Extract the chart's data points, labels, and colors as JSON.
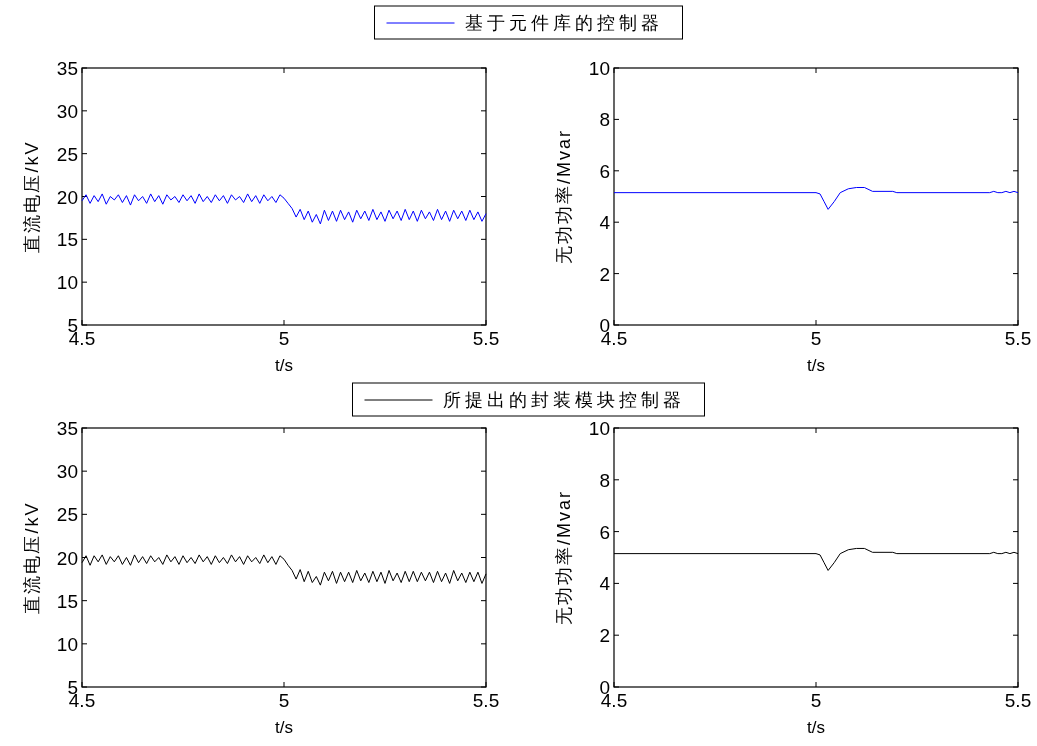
{
  "chart_data": [
    {
      "type": "line",
      "xlabel": "t/s",
      "ylabel": "直流电压/kV",
      "xlim": [
        4.5,
        5.5
      ],
      "xticks": [
        4.5,
        5,
        5.5
      ],
      "ylim": [
        5,
        35
      ],
      "yticks": [
        5,
        10,
        15,
        20,
        25,
        30,
        35
      ],
      "legend": "top",
      "x": [
        4.5,
        4.51,
        4.52,
        4.53,
        4.54,
        4.55,
        4.56,
        4.57,
        4.58,
        4.59,
        4.6,
        4.61,
        4.62,
        4.63,
        4.64,
        4.65,
        4.66,
        4.67,
        4.68,
        4.69,
        4.7,
        4.71,
        4.72,
        4.73,
        4.74,
        4.75,
        4.76,
        4.77,
        4.78,
        4.79,
        4.8,
        4.81,
        4.82,
        4.83,
        4.84,
        4.85,
        4.86,
        4.87,
        4.88,
        4.89,
        4.9,
        4.91,
        4.92,
        4.93,
        4.94,
        4.95,
        4.96,
        4.97,
        4.98,
        4.99,
        5.0,
        5.01,
        5.02,
        5.03,
        5.04,
        5.05,
        5.06,
        5.07,
        5.08,
        5.09,
        5.1,
        5.11,
        5.12,
        5.13,
        5.14,
        5.15,
        5.16,
        5.17,
        5.18,
        5.19,
        5.2,
        5.21,
        5.22,
        5.23,
        5.24,
        5.25,
        5.26,
        5.27,
        5.28,
        5.29,
        5.3,
        5.31,
        5.32,
        5.33,
        5.34,
        5.35,
        5.36,
        5.37,
        5.38,
        5.39,
        5.4,
        5.41,
        5.42,
        5.43,
        5.44,
        5.45,
        5.46,
        5.47,
        5.48,
        5.49,
        5.5
      ],
      "series": [
        {
          "name": "基于元件库的控制器",
          "color": "#0000ff",
          "values": [
            19.5,
            20.2,
            19.2,
            20.1,
            19.4,
            20.3,
            19.1,
            20.0,
            19.6,
            20.2,
            19.3,
            20.1,
            19.0,
            20.2,
            19.5,
            20.0,
            19.2,
            20.3,
            19.4,
            20.1,
            19.1,
            20.2,
            19.6,
            20.0,
            19.3,
            20.2,
            19.5,
            20.1,
            19.2,
            20.3,
            19.4,
            20.0,
            19.3,
            20.2,
            19.5,
            20.1,
            19.2,
            20.2,
            19.6,
            20.0,
            19.3,
            20.3,
            19.4,
            20.1,
            19.2,
            20.2,
            19.5,
            20.0,
            19.3,
            20.2,
            19.8,
            19.2,
            18.6,
            17.6,
            18.5,
            17.3,
            18.3,
            17.0,
            17.9,
            16.8,
            18.4,
            17.2,
            18.3,
            17.1,
            18.4,
            17.3,
            18.2,
            17.0,
            18.4,
            17.4,
            18.3,
            17.2,
            18.5,
            17.3,
            18.2,
            17.1,
            18.4,
            17.4,
            18.3,
            17.2,
            18.5,
            17.3,
            18.3,
            17.1,
            18.4,
            17.4,
            18.2,
            17.2,
            18.5,
            17.3,
            18.3,
            17.1,
            18.4,
            17.4,
            18.3,
            17.2,
            18.4,
            17.3,
            18.2,
            17.1,
            18.0
          ]
        }
      ]
    },
    {
      "type": "line",
      "xlabel": "t/s",
      "ylabel": "无功功率/Mvar",
      "xlim": [
        4.5,
        5.5
      ],
      "xticks": [
        4.5,
        5,
        5.5
      ],
      "ylim": [
        0,
        10
      ],
      "yticks": [
        0,
        2,
        4,
        6,
        8,
        10
      ],
      "x": [
        4.5,
        5.0,
        5.01,
        5.02,
        5.03,
        5.045,
        5.06,
        5.08,
        5.1,
        5.12,
        5.14,
        5.19,
        5.2,
        5.43,
        5.44,
        5.45,
        5.46,
        5.47,
        5.48,
        5.49,
        5.5
      ],
      "series": [
        {
          "color": "#0000ff",
          "values": [
            5.15,
            5.15,
            5.1,
            4.8,
            4.5,
            4.8,
            5.15,
            5.3,
            5.35,
            5.35,
            5.2,
            5.2,
            5.15,
            5.15,
            5.2,
            5.15,
            5.15,
            5.2,
            5.15,
            5.2,
            5.15
          ]
        }
      ]
    },
    {
      "type": "line",
      "xlabel": "t/s",
      "ylabel": "直流电压/kV",
      "xlim": [
        4.5,
        5.5
      ],
      "xticks": [
        4.5,
        5,
        5.5
      ],
      "ylim": [
        5,
        35
      ],
      "yticks": [
        5,
        10,
        15,
        20,
        25,
        30,
        35
      ],
      "legend": "top",
      "x": [
        4.5,
        4.51,
        4.52,
        4.53,
        4.54,
        4.55,
        4.56,
        4.57,
        4.58,
        4.59,
        4.6,
        4.61,
        4.62,
        4.63,
        4.64,
        4.65,
        4.66,
        4.67,
        4.68,
        4.69,
        4.7,
        4.71,
        4.72,
        4.73,
        4.74,
        4.75,
        4.76,
        4.77,
        4.78,
        4.79,
        4.8,
        4.81,
        4.82,
        4.83,
        4.84,
        4.85,
        4.86,
        4.87,
        4.88,
        4.89,
        4.9,
        4.91,
        4.92,
        4.93,
        4.94,
        4.95,
        4.96,
        4.97,
        4.98,
        4.99,
        5.0,
        5.01,
        5.02,
        5.03,
        5.04,
        5.05,
        5.06,
        5.07,
        5.08,
        5.09,
        5.1,
        5.11,
        5.12,
        5.13,
        5.14,
        5.15,
        5.16,
        5.17,
        5.18,
        5.19,
        5.2,
        5.21,
        5.22,
        5.23,
        5.24,
        5.25,
        5.26,
        5.27,
        5.28,
        5.29,
        5.3,
        5.31,
        5.32,
        5.33,
        5.34,
        5.35,
        5.36,
        5.37,
        5.38,
        5.39,
        5.4,
        5.41,
        5.42,
        5.43,
        5.44,
        5.45,
        5.46,
        5.47,
        5.48,
        5.49,
        5.5
      ],
      "series": [
        {
          "name": "所提出的封装模块控制器",
          "color": "#000000",
          "values": [
            19.4,
            20.2,
            19.1,
            20.2,
            19.5,
            20.3,
            19.2,
            20.1,
            19.5,
            20.2,
            19.2,
            20.0,
            19.1,
            20.3,
            19.4,
            20.1,
            19.3,
            20.2,
            19.5,
            20.0,
            19.2,
            20.3,
            19.5,
            20.1,
            19.2,
            20.2,
            19.4,
            20.0,
            19.3,
            20.3,
            19.5,
            20.1,
            19.2,
            20.2,
            19.4,
            20.0,
            19.3,
            20.3,
            19.5,
            20.1,
            19.2,
            20.2,
            19.5,
            20.0,
            19.3,
            20.3,
            19.4,
            20.1,
            19.2,
            20.2,
            19.8,
            19.1,
            18.5,
            17.5,
            18.6,
            17.2,
            18.4,
            17.1,
            17.8,
            16.8,
            18.3,
            17.3,
            18.4,
            17.0,
            18.3,
            17.2,
            18.3,
            17.1,
            18.5,
            17.3,
            18.2,
            17.1,
            18.4,
            17.2,
            18.3,
            17.0,
            18.5,
            17.3,
            18.2,
            17.1,
            18.4,
            17.2,
            18.4,
            17.2,
            18.3,
            17.3,
            18.3,
            17.1,
            18.4,
            17.2,
            18.2,
            17.0,
            18.5,
            17.3,
            18.2,
            17.1,
            18.3,
            17.2,
            18.3,
            17.0,
            18.1
          ]
        }
      ]
    },
    {
      "type": "line",
      "xlabel": "t/s",
      "ylabel": "无功功率/Mvar",
      "xlim": [
        4.5,
        5.5
      ],
      "xticks": [
        4.5,
        5,
        5.5
      ],
      "ylim": [
        0,
        10
      ],
      "yticks": [
        0,
        2,
        4,
        6,
        8,
        10
      ],
      "x": [
        4.5,
        5.0,
        5.01,
        5.02,
        5.03,
        5.045,
        5.06,
        5.08,
        5.1,
        5.12,
        5.14,
        5.19,
        5.2,
        5.43,
        5.44,
        5.45,
        5.46,
        5.47,
        5.48,
        5.49,
        5.5
      ],
      "series": [
        {
          "color": "#000000",
          "values": [
            5.15,
            5.15,
            5.1,
            4.8,
            4.5,
            4.8,
            5.15,
            5.3,
            5.35,
            5.35,
            5.2,
            5.2,
            5.15,
            5.15,
            5.2,
            5.15,
            5.15,
            5.2,
            5.15,
            5.2,
            5.15
          ]
        }
      ]
    }
  ]
}
